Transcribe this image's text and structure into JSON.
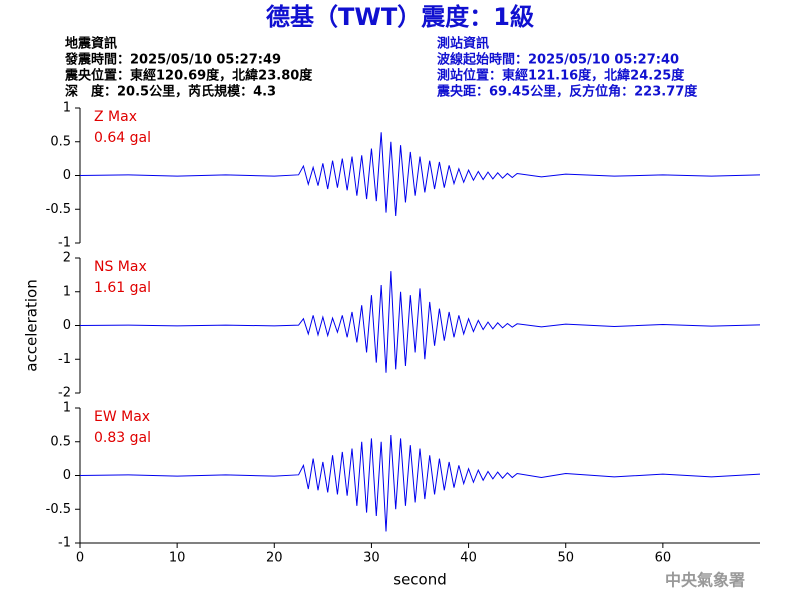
{
  "header": {
    "title": "德基（TWT）震度：1級",
    "left": [
      "地震資訊",
      "發震時間：2025/05/10 05:27:49",
      "震央位置：東經120.69度，北緯23.80度",
      "深　度：20.5公里，芮氏規模：4.3"
    ],
    "right": [
      "測站資訊",
      "波線起始時間：2025/05/10 05:27:40",
      "測站位置：東經121.16度，北緯24.25度",
      "震央距：69.45公里，反方位角：223.77度"
    ]
  },
  "footer": {
    "agency": "中央氣象署"
  },
  "chart_data": [
    {
      "type": "line",
      "annotations": [
        "Z Max",
        "0.64 gal"
      ],
      "xlim": [
        0,
        70
      ],
      "ylim": [
        -1,
        1
      ],
      "yticks": [
        -1,
        -0.5,
        0,
        0.5,
        1
      ],
      "x": [
        0,
        5,
        10,
        15,
        20,
        22.5,
        23,
        23.5,
        24,
        24.5,
        25,
        25.5,
        26,
        26.5,
        27,
        27.5,
        28,
        28.5,
        29,
        29.5,
        30,
        30.5,
        31,
        31.5,
        32,
        32.5,
        33,
        33.5,
        34,
        34.5,
        35,
        35.5,
        36,
        36.5,
        37,
        37.5,
        38,
        38.5,
        39,
        39.5,
        40,
        40.5,
        41,
        41.5,
        42,
        42.5,
        43,
        43.5,
        44,
        44.5,
        45,
        47.5,
        50,
        55,
        60,
        65,
        70
      ],
      "series": [
        {
          "color": "#0000ee",
          "values": [
            0,
            0.01,
            -0.01,
            0.01,
            -0.01,
            0.01,
            0.14,
            -0.13,
            0.12,
            -0.15,
            0.18,
            -0.2,
            0.22,
            -0.18,
            0.25,
            -0.22,
            0.28,
            -0.3,
            0.3,
            -0.35,
            0.4,
            -0.38,
            0.64,
            -0.55,
            0.5,
            -0.6,
            0.45,
            -0.4,
            0.35,
            -0.3,
            0.28,
            -0.25,
            0.22,
            -0.2,
            0.2,
            -0.18,
            0.15,
            -0.12,
            0.1,
            -0.1,
            0.08,
            -0.07,
            0.06,
            -0.06,
            0.05,
            -0.05,
            0.04,
            -0.04,
            0.03,
            -0.03,
            0.03,
            -0.02,
            0.02,
            -0.01,
            0.01,
            -0.01,
            0.01
          ]
        }
      ]
    },
    {
      "type": "line",
      "annotations": [
        "NS Max",
        "1.61 gal"
      ],
      "ylabel": "acceleration",
      "xlim": [
        0,
        70
      ],
      "ylim": [
        -2,
        2
      ],
      "yticks": [
        -2,
        -1,
        0,
        1,
        2
      ],
      "x": [
        0,
        5,
        10,
        15,
        20,
        22.5,
        23,
        23.5,
        24,
        24.5,
        25,
        25.5,
        26,
        26.5,
        27,
        27.5,
        28,
        28.5,
        29,
        29.5,
        30,
        30.5,
        31,
        31.5,
        32,
        32.5,
        33,
        33.5,
        34,
        34.5,
        35,
        35.5,
        36,
        36.5,
        37,
        37.5,
        38,
        38.5,
        39,
        39.5,
        40,
        40.5,
        41,
        41.5,
        42,
        42.5,
        43,
        43.5,
        44,
        44.5,
        45,
        47.5,
        50,
        55,
        60,
        65,
        70
      ],
      "series": [
        {
          "color": "#0000ee",
          "values": [
            0,
            0.01,
            -0.01,
            0.01,
            -0.01,
            0.01,
            0.2,
            -0.25,
            0.3,
            -0.28,
            0.25,
            -0.3,
            0.22,
            -0.2,
            0.3,
            -0.35,
            0.4,
            -0.5,
            0.6,
            -0.8,
            0.9,
            -1.1,
            1.2,
            -1.4,
            1.61,
            -1.3,
            1.0,
            -1.2,
            0.9,
            -0.8,
            1.1,
            -1.0,
            0.7,
            -0.6,
            0.5,
            -0.45,
            0.4,
            -0.35,
            0.3,
            -0.25,
            0.2,
            -0.18,
            0.15,
            -0.12,
            0.1,
            -0.1,
            0.08,
            -0.07,
            0.06,
            -0.05,
            0.05,
            -0.04,
            0.04,
            -0.03,
            0.03,
            -0.02,
            0.02
          ]
        }
      ]
    },
    {
      "type": "line",
      "annotations": [
        "EW Max",
        "0.83 gal"
      ],
      "xlabel": "second",
      "xlim": [
        0,
        70
      ],
      "xticks": [
        0,
        10,
        20,
        30,
        40,
        50,
        60
      ],
      "ylim": [
        -1,
        1
      ],
      "yticks": [
        -1,
        -0.5,
        0,
        0.5,
        1
      ],
      "x": [
        0,
        5,
        10,
        15,
        20,
        22.5,
        23,
        23.5,
        24,
        24.5,
        25,
        25.5,
        26,
        26.5,
        27,
        27.5,
        28,
        28.5,
        29,
        29.5,
        30,
        30.5,
        31,
        31.5,
        32,
        32.5,
        33,
        33.5,
        34,
        34.5,
        35,
        35.5,
        36,
        36.5,
        37,
        37.5,
        38,
        38.5,
        39,
        39.5,
        40,
        40.5,
        41,
        41.5,
        42,
        42.5,
        43,
        43.5,
        44,
        44.5,
        45,
        47.5,
        50,
        55,
        60,
        65,
        70
      ],
      "series": [
        {
          "color": "#0000ee",
          "values": [
            0,
            0.01,
            -0.01,
            0.01,
            -0.01,
            0.01,
            0.15,
            -0.2,
            0.25,
            -0.22,
            0.2,
            -0.25,
            0.3,
            -0.28,
            0.35,
            -0.3,
            0.4,
            -0.45,
            0.5,
            -0.55,
            0.55,
            -0.6,
            0.5,
            -0.83,
            0.6,
            -0.5,
            0.55,
            -0.45,
            0.45,
            -0.4,
            0.4,
            -0.35,
            0.3,
            -0.28,
            0.25,
            -0.22,
            0.2,
            -0.18,
            0.15,
            -0.12,
            0.1,
            -0.1,
            0.08,
            -0.07,
            0.06,
            -0.05,
            0.05,
            -0.04,
            0.04,
            -0.03,
            0.03,
            -0.03,
            0.03,
            -0.02,
            0.02,
            -0.02,
            0.02
          ]
        }
      ]
    }
  ]
}
